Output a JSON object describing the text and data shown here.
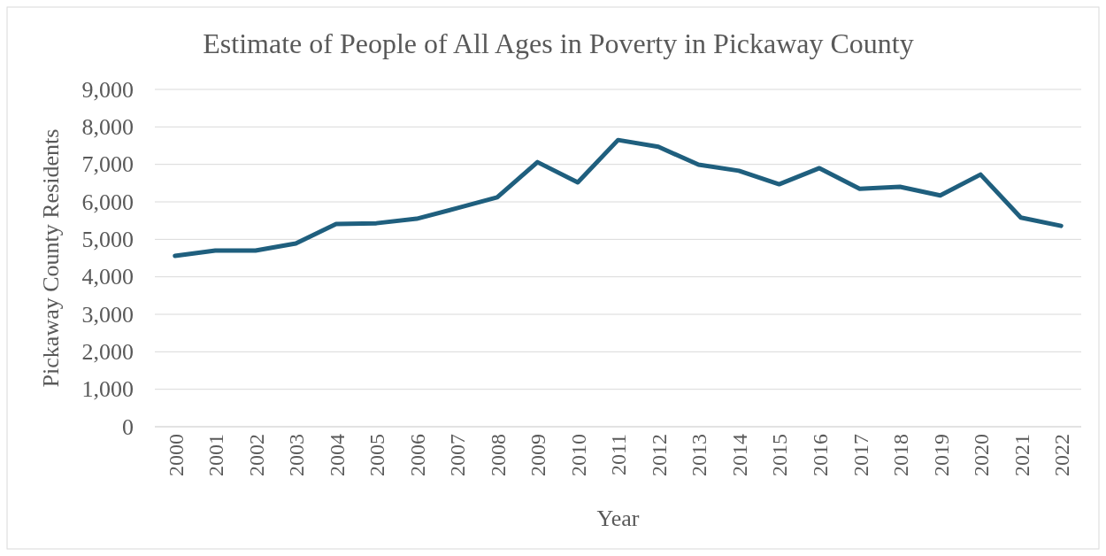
{
  "chart_data": {
    "type": "line",
    "title": "Estimate of People of All Ages in Poverty in Pickaway County",
    "xlabel": "Year",
    "ylabel": "Pickaway County Residents",
    "categories": [
      "2000",
      "2001",
      "2002",
      "2003",
      "2004",
      "2005",
      "2006",
      "2007",
      "2008",
      "2009",
      "2010",
      "2011",
      "2012",
      "2013",
      "2014",
      "2015",
      "2016",
      "2017",
      "2018",
      "2019",
      "2020",
      "2021",
      "2022"
    ],
    "series": [
      {
        "color": "#1f5f7e",
        "values": [
          4560,
          4700,
          4700,
          4890,
          5410,
          5430,
          5550,
          5830,
          6120,
          7060,
          6520,
          7650,
          7470,
          6990,
          6830,
          6470,
          6900,
          6350,
          6400,
          6170,
          6730,
          5580,
          5360
        ]
      }
    ],
    "ylim": [
      0,
      9000
    ],
    "yticks": [
      {
        "value": 0,
        "label": "0"
      },
      {
        "value": 1000,
        "label": "1,000"
      },
      {
        "value": 2000,
        "label": "2,000"
      },
      {
        "value": 3000,
        "label": "3,000"
      },
      {
        "value": 4000,
        "label": "4,000"
      },
      {
        "value": 5000,
        "label": "5,000"
      },
      {
        "value": 6000,
        "label": "6,000"
      },
      {
        "value": 7000,
        "label": "7,000"
      },
      {
        "value": 8000,
        "label": "8,000"
      },
      {
        "value": 9000,
        "label": "9,000"
      }
    ],
    "grid": "y",
    "marker": "none",
    "line_style": "solid"
  }
}
